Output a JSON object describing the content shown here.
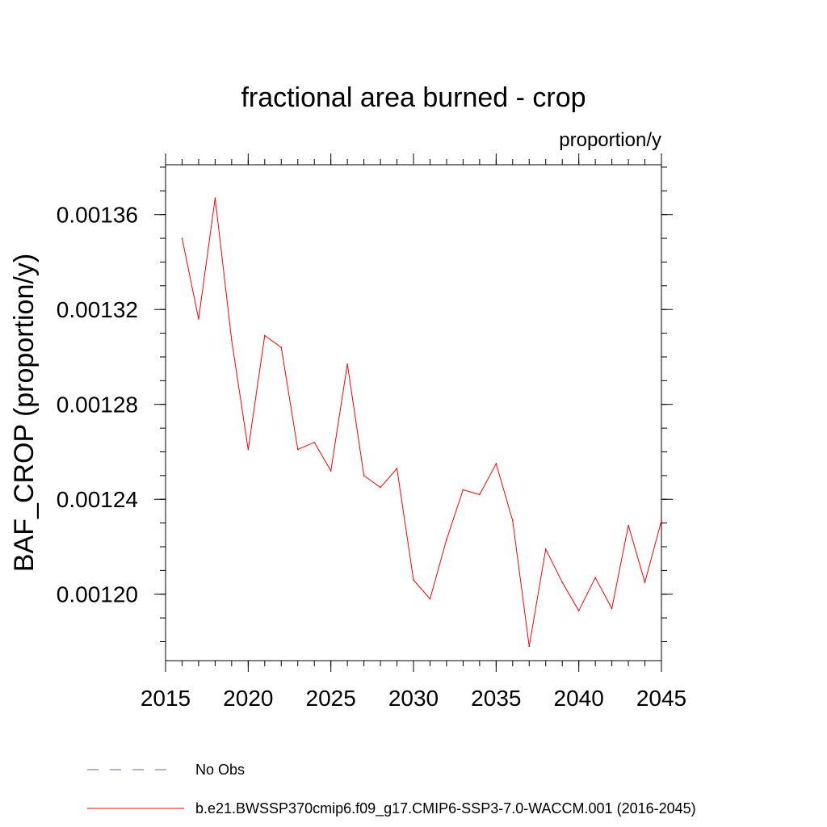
{
  "chart_data": {
    "type": "line",
    "title": "fractional area burned - crop",
    "units": "proportion/y",
    "ylabel": "BAF_CROP  (proportion/y)",
    "xlabel": "",
    "xlim": [
      2015,
      2045
    ],
    "ylim": [
      0.001381,
      0.001172
    ],
    "x_ticks": [
      2015,
      2020,
      2025,
      2030,
      2035,
      2040,
      2045
    ],
    "x_minor_step": 1,
    "y_ticks": [
      0.0012,
      0.00124,
      0.00128,
      0.00132,
      0.00136
    ],
    "y_tick_labels": [
      "0.00120",
      "0.00124",
      "0.00128",
      "0.00132",
      "0.00136"
    ],
    "y_minor_step": 1e-05,
    "grid": false,
    "legend_position": "bottom-left",
    "series": [
      {
        "name": "No Obs",
        "color": "#6a5fb0",
        "style": "dashed",
        "x": [],
        "values": []
      },
      {
        "name": "b.e21.BWSSP370cmip6.f09_g17.CMIP6-SSP3-7.0-WACCM.001 (2016-2045)",
        "color": "#ff0000",
        "style": "solid",
        "x": [
          2016,
          2017,
          2018,
          2019,
          2020,
          2021,
          2022,
          2023,
          2024,
          2025,
          2026,
          2027,
          2028,
          2029,
          2030,
          2031,
          2032,
          2033,
          2034,
          2035,
          2036,
          2037,
          2038,
          2039,
          2040,
          2041,
          2042,
          2043,
          2044,
          2045
        ],
        "values": [
          0.00135,
          0.001316,
          0.001367,
          0.001307,
          0.001261,
          0.001309,
          0.001304,
          0.001261,
          0.001264,
          0.001252,
          0.001297,
          0.00125,
          0.001245,
          0.001253,
          0.001206,
          0.001198,
          0.001223,
          0.001244,
          0.001242,
          0.001255,
          0.001231,
          0.001178,
          0.001219,
          0.001205,
          0.001193,
          0.001207,
          0.001194,
          0.001229,
          0.001205,
          0.001231
        ]
      }
    ]
  }
}
